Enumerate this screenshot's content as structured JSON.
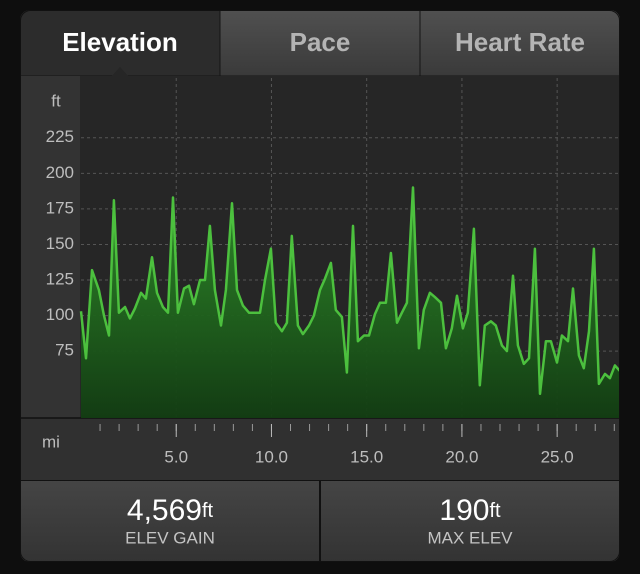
{
  "tabs": [
    "Elevation",
    "Pace",
    "Heart Rate"
  ],
  "selected_tab": 0,
  "chart_data": {
    "type": "area",
    "y_unit": "ft",
    "x_unit": "mi",
    "color": "#4cc03e",
    "grid": true,
    "xlim": [
      0,
      28.3
    ],
    "ylim": [
      28,
      267
    ],
    "yticks": [
      75,
      100,
      125,
      150,
      175,
      200,
      225
    ],
    "xticks": [
      {
        "value": 5,
        "label": "5.0"
      },
      {
        "value": 10,
        "label": "10.0"
      },
      {
        "value": 15,
        "label": "15.0"
      },
      {
        "value": 20,
        "label": "20.0"
      },
      {
        "value": 25,
        "label": "25.0"
      }
    ],
    "x_minor_ticks": [
      1,
      2,
      3,
      4,
      5,
      6,
      7,
      8,
      9,
      10,
      11,
      12,
      13,
      14,
      15,
      16,
      17,
      18,
      19,
      20,
      21,
      22,
      23,
      24,
      25,
      26,
      27,
      28
    ],
    "x": [
      0,
      0.26,
      0.58,
      0.94,
      1.21,
      1.47,
      1.73,
      1.99,
      2.31,
      2.57,
      2.83,
      3.15,
      3.41,
      3.73,
      3.99,
      4.3,
      4.57,
      4.83,
      5.09,
      5.41,
      5.67,
      5.93,
      6.25,
      6.51,
      6.77,
      7.03,
      7.35,
      7.61,
      7.93,
      8.19,
      8.5,
      8.82,
      9.08,
      9.4,
      9.66,
      9.97,
      10.23,
      10.55,
      10.81,
      11.07,
      11.39,
      11.65,
      11.97,
      12.23,
      12.55,
      12.81,
      13.12,
      13.38,
      13.7,
      13.96,
      14.28,
      14.54,
      14.86,
      15.12,
      15.43,
      15.7,
      16.01,
      16.27,
      16.59,
      16.85,
      17.11,
      17.43,
      17.74,
      18.0,
      18.32,
      18.58,
      18.9,
      19.16,
      19.47,
      19.74,
      20.05,
      20.31,
      20.63,
      20.94,
      21.2,
      21.52,
      21.78,
      22.1,
      22.36,
      22.68,
      22.94,
      23.25,
      23.52,
      23.83,
      24.1,
      24.41,
      24.67,
      24.99,
      25.25,
      25.57,
      25.83,
      26.14,
      26.4,
      26.67,
      26.93,
      27.19,
      27.51,
      27.77,
      28.03,
      28.3
    ],
    "values": [
      103,
      70,
      132,
      118,
      100,
      86,
      181,
      102,
      106,
      98,
      105,
      116,
      112,
      141,
      116,
      106,
      102,
      183,
      102,
      119,
      121,
      108,
      125,
      125,
      163,
      118,
      93,
      118,
      179,
      118,
      107,
      102,
      102,
      102,
      125,
      147,
      95,
      89,
      95,
      156,
      93,
      87,
      93,
      100,
      118,
      126,
      137,
      104,
      99,
      60,
      163,
      82,
      86,
      86,
      101,
      109,
      109,
      144,
      95,
      102,
      109,
      190,
      77,
      104,
      116,
      113,
      109,
      77,
      91,
      114,
      91,
      102,
      161,
      51,
      93,
      96,
      93,
      79,
      75,
      128,
      79,
      66,
      70,
      147,
      45,
      82,
      82,
      67,
      86,
      82,
      119,
      72,
      63,
      89,
      147,
      52,
      59,
      56,
      65,
      61
    ]
  },
  "stats": [
    {
      "value": "4,569",
      "unit": "ft",
      "label": "ELEV GAIN"
    },
    {
      "value": "190",
      "unit": "ft",
      "label": "MAX ELEV"
    }
  ]
}
